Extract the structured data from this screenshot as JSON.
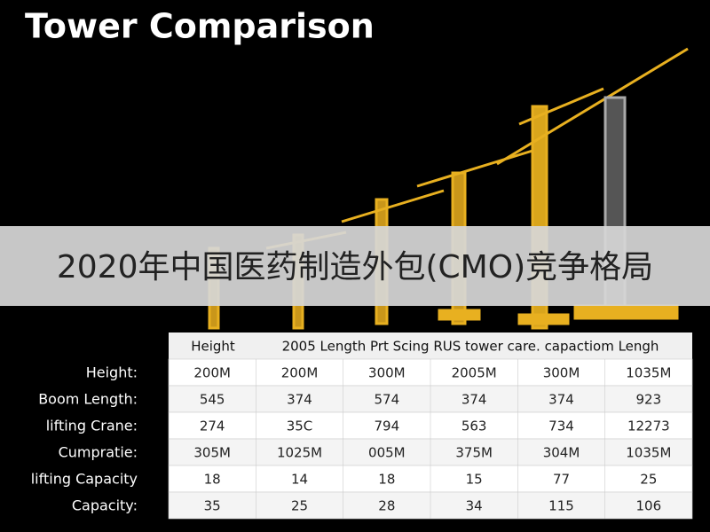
{
  "header": {
    "title": "Tower Comparison"
  },
  "banner": {
    "text": "2020年中国医药制造外包(CMO)竞争格局"
  },
  "table": {
    "header": [
      "Height",
      "2005 Length Prt Scing RUS tower care. capactiom Lengh"
    ],
    "row_labels": [
      "Height:",
      "Boom Length:",
      "lifting Crane:",
      "Cumpratie:",
      "lifting Capacity",
      "Capacity:"
    ],
    "rows": [
      [
        "200M",
        "200M",
        "300M",
        "2005M",
        "300M",
        "1035M"
      ],
      [
        "545",
        "374",
        "574",
        "374",
        "374",
        "923"
      ],
      [
        "274",
        "35C",
        "794",
        "563",
        "734",
        "12273"
      ],
      [
        "305M",
        "1025M",
        "005M",
        "375M",
        "304M",
        "1035M"
      ],
      [
        "18",
        "14",
        "18",
        "15",
        "77",
        "25"
      ],
      [
        "35",
        "25",
        "28",
        "34",
        "115",
        "106"
      ]
    ]
  }
}
